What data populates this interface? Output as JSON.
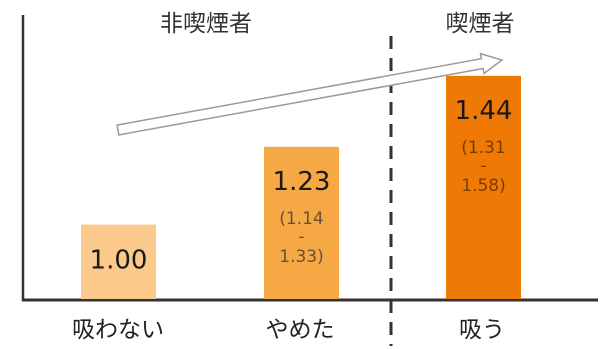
{
  "chart_data": {
    "type": "bar",
    "categories": [
      "吸わない",
      "やめた",
      "吸う"
    ],
    "values": [
      1.0,
      1.23,
      1.44
    ],
    "value_labels": [
      "1.00",
      "1.23",
      "1.44"
    ],
    "ci_lower_labels": [
      "",
      "1.14",
      "1.31"
    ],
    "ci_upper_labels": [
      "",
      "1.33",
      "1.58"
    ],
    "ci_sep": "-",
    "ci_open": "(",
    "ci_close": ")",
    "ci_text": [
      "",
      "(1.14\n-\n1.33)",
      "(1.31\n-\n1.58)"
    ],
    "bar_colors": [
      "#FBC98B",
      "#F5A843",
      "#EE7A05"
    ],
    "ci_text_colors": [
      "#5a4a3a",
      "#6b5030",
      "#7a3d00"
    ],
    "groups": [
      {
        "label": "非喫煙者",
        "categories": [
          "吸わない",
          "やめた"
        ]
      },
      {
        "label": "喫煙者",
        "categories": [
          "吸う"
        ]
      }
    ],
    "ylim": [
      0.78,
      1.62
    ],
    "arrow": "increasing",
    "grid": false,
    "divider": "dashed, between やめた and 吸う"
  }
}
